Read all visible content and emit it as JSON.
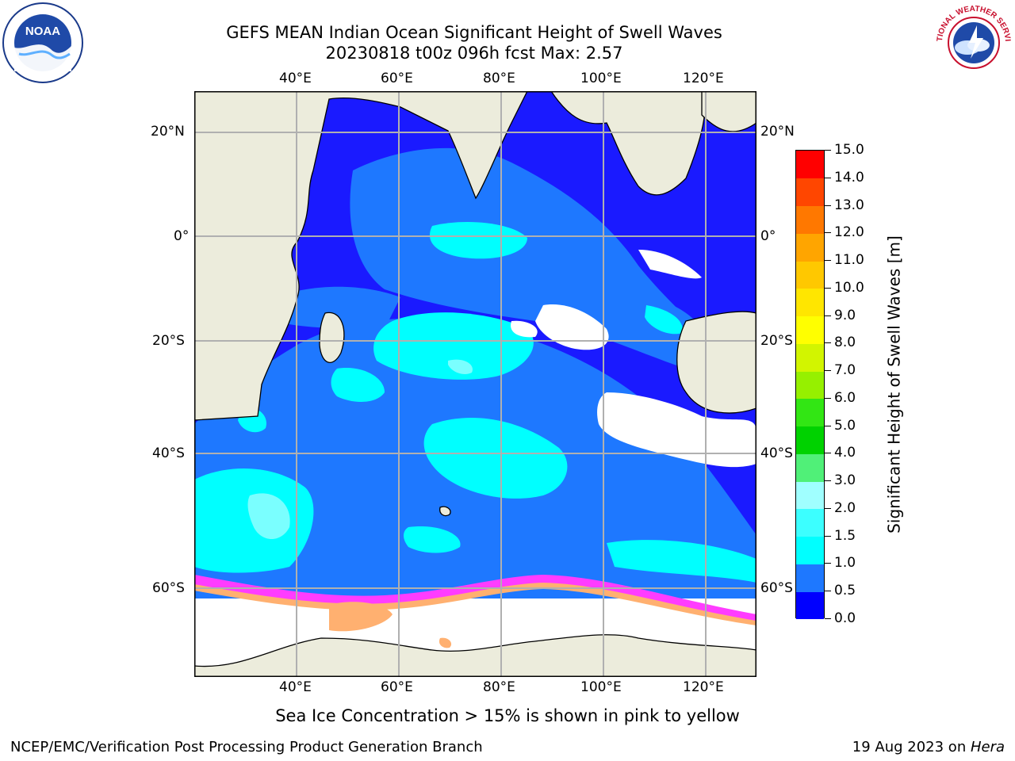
{
  "title": {
    "line1": "GEFS MEAN Indian Ocean Significant Height of Swell Waves",
    "line2": "20230818 t00z 096h fcst   Max: 2.57"
  },
  "map": {
    "lon_labels": [
      "40°E",
      "60°E",
      "80°E",
      "100°E",
      "120°E"
    ],
    "lat_labels": [
      "20°N",
      "0°",
      "20°S",
      "40°S",
      "60°S"
    ],
    "extent": {
      "lon": [
        20,
        130
      ],
      "lat": [
        -73,
        27
      ]
    },
    "grid": true
  },
  "colorbar": {
    "label": "Significant Height of Swell Waves [m]",
    "ticks": [
      "0.0",
      "0.5",
      "1.0",
      "1.5",
      "2.0",
      "3.0",
      "4.0",
      "5.0",
      "6.0",
      "7.0",
      "8.0",
      "9.0",
      "10.0",
      "11.0",
      "12.0",
      "13.0",
      "14.0",
      "15.0"
    ],
    "colors": [
      "#0000ff",
      "#1e78ff",
      "#00ffff",
      "#3cffff",
      "#a0ffff",
      "#50f078",
      "#00d200",
      "#32e614",
      "#96f000",
      "#d2f500",
      "#ffff00",
      "#ffe600",
      "#ffc800",
      "#ffa500",
      "#ff7800",
      "#ff4600",
      "#ff0000"
    ]
  },
  "note": "Sea Ice Concentration > 15% is shown in pink to yellow",
  "footer": {
    "left": "NCEP/EMC/Verification Post Processing Product Generation Branch",
    "right_prefix": "19 Aug 2023 on ",
    "right_host": "Hera"
  },
  "logos": {
    "noaa": "NOAA",
    "nws": "NATIONAL WEATHER SERVICE"
  }
}
